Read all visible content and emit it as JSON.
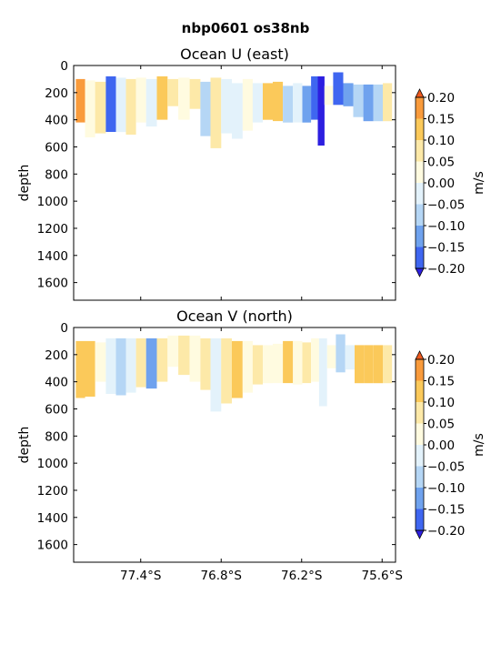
{
  "figure": {
    "title": "nbp0601 os38nb",
    "colorbar_ticks": [
      "0.20",
      "0.15",
      "0.10",
      "0.05",
      "0.00",
      "−0.05",
      "−0.10",
      "−0.15",
      "−0.20"
    ],
    "colorbar_unit": "m/s",
    "colors": [
      "#2d1fe0",
      "#3f66f0",
      "#6fa2ee",
      "#b5d6f5",
      "#e3f2fb",
      "#fffbe0",
      "#fde9a8",
      "#fbc95a",
      "#f99b3c",
      "#ee5a1f"
    ]
  },
  "chart_data": [
    {
      "type": "heatmap",
      "title": "Ocean U (east)",
      "xlabel": "",
      "ylabel": "depth",
      "ylim": [
        1730,
        0
      ],
      "yticks": [
        "0",
        "200",
        "400",
        "600",
        "800",
        "1000",
        "1200",
        "1400",
        "1600"
      ],
      "xlim": [
        77.9,
        75.5
      ],
      "xticks": [
        "77.4°S",
        "76.8°S",
        "76.2°S",
        "75.6°S"
      ],
      "colorbar": {
        "label": "m/s",
        "range": [
          -0.2,
          0.2
        ],
        "levels": [
          -0.2,
          -0.15,
          -0.1,
          -0.05,
          0,
          0.05,
          0.1,
          0.15,
          0.2
        ]
      },
      "columns": [
        {
          "lat": 77.85,
          "top": 100,
          "bottom": 420,
          "u": 0.16
        },
        {
          "lat": 77.78,
          "top": 110,
          "bottom": 530,
          "u": 0.02
        },
        {
          "lat": 77.7,
          "top": 120,
          "bottom": 500,
          "u": 0.06
        },
        {
          "lat": 77.62,
          "top": 80,
          "bottom": 490,
          "u": -0.16
        },
        {
          "lat": 77.55,
          "top": 90,
          "bottom": 490,
          "u": -0.05
        },
        {
          "lat": 77.47,
          "top": 100,
          "bottom": 510,
          "u": 0.08
        },
        {
          "lat": 77.4,
          "top": 90,
          "bottom": 420,
          "u": 0.02
        },
        {
          "lat": 77.32,
          "top": 100,
          "bottom": 450,
          "u": -0.04
        },
        {
          "lat": 77.24,
          "top": 80,
          "bottom": 400,
          "u": 0.15
        },
        {
          "lat": 77.16,
          "top": 100,
          "bottom": 300,
          "u": 0.07
        },
        {
          "lat": 77.08,
          "top": 90,
          "bottom": 400,
          "u": 0.03
        },
        {
          "lat": 76.99,
          "top": 100,
          "bottom": 320,
          "u": 0.09
        },
        {
          "lat": 76.92,
          "top": 120,
          "bottom": 520,
          "u": -0.07
        },
        {
          "lat": 76.84,
          "top": 90,
          "bottom": 610,
          "u": 0.06
        },
        {
          "lat": 76.76,
          "top": 100,
          "bottom": 500,
          "u": -0.03
        },
        {
          "lat": 76.68,
          "top": 130,
          "bottom": 540,
          "u": -0.05
        },
        {
          "lat": 76.6,
          "top": 100,
          "bottom": 480,
          "u": 0.01
        },
        {
          "lat": 76.53,
          "top": 130,
          "bottom": 420,
          "u": -0.04
        },
        {
          "lat": 76.45,
          "top": 130,
          "bottom": 400,
          "u": 0.15
        },
        {
          "lat": 76.38,
          "top": 120,
          "bottom": 410,
          "u": 0.11
        },
        {
          "lat": 76.3,
          "top": 150,
          "bottom": 420,
          "u": -0.07
        },
        {
          "lat": 76.23,
          "top": 130,
          "bottom": 420,
          "u": -0.04
        },
        {
          "lat": 76.16,
          "top": 150,
          "bottom": 420,
          "u": -0.14
        },
        {
          "lat": 76.1,
          "top": 80,
          "bottom": 400,
          "u": -0.2
        },
        {
          "lat": 76.06,
          "top": 80,
          "bottom": 590,
          "u": -0.22
        },
        {
          "lat": 76.0,
          "top": 150,
          "bottom": 290,
          "u": 0.02
        },
        {
          "lat": 75.93,
          "top": 50,
          "bottom": 290,
          "u": -0.17
        },
        {
          "lat": 75.85,
          "top": 130,
          "bottom": 300,
          "u": -0.11
        },
        {
          "lat": 75.78,
          "top": 140,
          "bottom": 380,
          "u": -0.09
        },
        {
          "lat": 75.7,
          "top": 140,
          "bottom": 410,
          "u": -0.13
        },
        {
          "lat": 75.63,
          "top": 140,
          "bottom": 410,
          "u": -0.07
        },
        {
          "lat": 75.56,
          "top": 130,
          "bottom": 410,
          "u": 0.07
        }
      ]
    },
    {
      "type": "heatmap",
      "title": "Ocean V (north)",
      "xlabel": "",
      "ylabel": "depth",
      "ylim": [
        1730,
        0
      ],
      "yticks": [
        "0",
        "200",
        "400",
        "600",
        "800",
        "1000",
        "1200",
        "1400",
        "1600"
      ],
      "xlim": [
        77.9,
        75.5
      ],
      "xticks": [
        "77.4°S",
        "76.8°S",
        "76.2°S",
        "75.6°S"
      ],
      "colorbar": {
        "label": "m/s",
        "range": [
          -0.2,
          0.2
        ],
        "levels": [
          -0.2,
          -0.15,
          -0.1,
          -0.05,
          0,
          0.05,
          0.1,
          0.15,
          0.2
        ]
      },
      "columns": [
        {
          "lat": 77.85,
          "top": 100,
          "bottom": 520,
          "v": 0.13
        },
        {
          "lat": 77.78,
          "top": 100,
          "bottom": 510,
          "v": 0.11
        },
        {
          "lat": 77.7,
          "top": 110,
          "bottom": 400,
          "v": 0.04
        },
        {
          "lat": 77.62,
          "top": 80,
          "bottom": 490,
          "v": -0.04
        },
        {
          "lat": 77.55,
          "top": 80,
          "bottom": 500,
          "v": -0.08
        },
        {
          "lat": 77.47,
          "top": 80,
          "bottom": 480,
          "v": -0.04
        },
        {
          "lat": 77.4,
          "top": 80,
          "bottom": 440,
          "v": 0.07
        },
        {
          "lat": 77.32,
          "top": 80,
          "bottom": 450,
          "v": -0.15
        },
        {
          "lat": 77.24,
          "top": 80,
          "bottom": 400,
          "v": 0.08
        },
        {
          "lat": 77.16,
          "top": 60,
          "bottom": 290,
          "v": 0.03
        },
        {
          "lat": 77.08,
          "top": 60,
          "bottom": 350,
          "v": 0.06
        },
        {
          "lat": 76.99,
          "top": 60,
          "bottom": 400,
          "v": 0.04
        },
        {
          "lat": 76.92,
          "top": 80,
          "bottom": 460,
          "v": 0.09
        },
        {
          "lat": 76.84,
          "top": 80,
          "bottom": 620,
          "v": -0.04
        },
        {
          "lat": 76.76,
          "top": 80,
          "bottom": 560,
          "v": 0.06
        },
        {
          "lat": 76.68,
          "top": 100,
          "bottom": 520,
          "v": 0.12
        },
        {
          "lat": 76.6,
          "top": 100,
          "bottom": 480,
          "v": 0.02
        },
        {
          "lat": 76.53,
          "top": 130,
          "bottom": 420,
          "v": 0.06
        },
        {
          "lat": 76.45,
          "top": 130,
          "bottom": 410,
          "v": 0.02
        },
        {
          "lat": 76.38,
          "top": 120,
          "bottom": 410,
          "v": 0.04
        },
        {
          "lat": 76.3,
          "top": 100,
          "bottom": 410,
          "v": 0.1
        },
        {
          "lat": 76.23,
          "top": 100,
          "bottom": 420,
          "v": 0.03
        },
        {
          "lat": 76.16,
          "top": 110,
          "bottom": 410,
          "v": 0.07
        },
        {
          "lat": 76.1,
          "top": 80,
          "bottom": 400,
          "v": 0.01
        },
        {
          "lat": 76.04,
          "top": 80,
          "bottom": 580,
          "v": -0.04
        },
        {
          "lat": 75.98,
          "top": 130,
          "bottom": 300,
          "v": 0.03
        },
        {
          "lat": 75.91,
          "top": 50,
          "bottom": 330,
          "v": -0.06
        },
        {
          "lat": 75.84,
          "top": 130,
          "bottom": 310,
          "v": -0.03
        },
        {
          "lat": 75.77,
          "top": 130,
          "bottom": 410,
          "v": 0.1
        },
        {
          "lat": 75.7,
          "top": 130,
          "bottom": 410,
          "v": 0.14
        },
        {
          "lat": 75.63,
          "top": 130,
          "bottom": 410,
          "v": 0.12
        },
        {
          "lat": 75.56,
          "top": 130,
          "bottom": 410,
          "v": 0.09
        }
      ]
    }
  ]
}
